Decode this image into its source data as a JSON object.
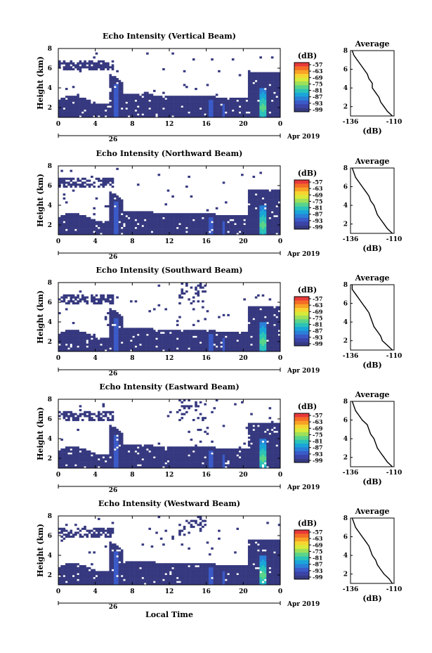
{
  "figure": {
    "xlabel": "Local Time",
    "date_left": "26",
    "date_right": "Apr 2019"
  },
  "colorbar": {
    "unit": "(dB)",
    "ticks": [
      "-57",
      "-63",
      "-69",
      "-75",
      "-81",
      "-87",
      "-93",
      "-99"
    ],
    "colors": [
      "#e8393a",
      "#f46d26",
      "#f8a226",
      "#f6d530",
      "#d8ea3a",
      "#9ee05a",
      "#5ad48a",
      "#2cc3b8",
      "#1aa5d8",
      "#2a80d8",
      "#3a5ac8",
      "#3a44a8",
      "#363a84"
    ]
  },
  "chart_data": [
    {
      "type": "heatmap",
      "title": "Echo Intensity (Vertical Beam)",
      "xlabel": "Local Time",
      "ylabel": "Height (km)",
      "xlim": [
        0,
        24
      ],
      "ylim": [
        1,
        8
      ],
      "xticks": [
        "0",
        "4",
        "8",
        "12",
        "16",
        "20",
        "0"
      ],
      "yticks": [
        "2",
        "4",
        "6",
        "8"
      ],
      "colorbar_label": "(dB)",
      "colorbar_range": [
        -99,
        -57
      ],
      "profile": {
        "title": "Average",
        "xlabel": "(dB)",
        "xlim": [
          -136,
          -110
        ],
        "xticks": [
          "-136",
          "-110"
        ],
        "yticks": [
          "2",
          "4",
          "6",
          "8"
        ],
        "ylim": [
          1,
          8
        ],
        "height": [
          1.0,
          1.5,
          2.0,
          2.5,
          3.0,
          3.5,
          4.0,
          4.5,
          5.0,
          5.5,
          6.0,
          6.5,
          7.0,
          7.5,
          8.0
        ],
        "db": [
          -111,
          -114,
          -116,
          -118,
          -119,
          -121,
          -123,
          -123,
          -125,
          -126,
          -128,
          -130,
          -132,
          -134,
          -135
        ]
      }
    },
    {
      "type": "heatmap",
      "title": "Echo Intensity (Northward Beam)",
      "xlabel": "Local Time",
      "ylabel": "Height (km)",
      "xlim": [
        0,
        24
      ],
      "ylim": [
        1,
        8
      ],
      "xticks": [
        "0",
        "4",
        "8",
        "12",
        "16",
        "20",
        "0"
      ],
      "yticks": [
        "2",
        "4",
        "6",
        "8"
      ],
      "colorbar_label": "(dB)",
      "colorbar_range": [
        -99,
        -57
      ],
      "profile": {
        "title": "Average",
        "xlabel": "(dB)",
        "xlim": [
          -136,
          -110
        ],
        "xticks": [
          "-136",
          "-110"
        ],
        "yticks": [
          "2",
          "4",
          "6",
          "8"
        ],
        "ylim": [
          1,
          8
        ],
        "height": [
          1.0,
          1.5,
          2.0,
          2.5,
          3.0,
          3.5,
          4.0,
          4.5,
          5.0,
          5.5,
          6.0,
          6.5,
          7.0,
          7.5,
          8.0
        ],
        "db": [
          -111,
          -114,
          -116,
          -118,
          -120,
          -121,
          -122,
          -124,
          -125,
          -127,
          -129,
          -131,
          -133,
          -134,
          -135
        ]
      }
    },
    {
      "type": "heatmap",
      "title": "Echo Intensity (Southward Beam)",
      "xlabel": "Local Time",
      "ylabel": "Height (km)",
      "xlim": [
        0,
        24
      ],
      "ylim": [
        1,
        8
      ],
      "xticks": [
        "0",
        "4",
        "8",
        "12",
        "16",
        "20",
        "0"
      ],
      "yticks": [
        "2",
        "4",
        "6",
        "8"
      ],
      "colorbar_label": "(dB)",
      "colorbar_range": [
        -99,
        -57
      ],
      "profile": {
        "title": "Average",
        "xlabel": "(dB)",
        "xlim": [
          -136,
          -110
        ],
        "xticks": [
          "-136",
          "-110"
        ],
        "yticks": [
          "2",
          "4",
          "6",
          "8"
        ],
        "ylim": [
          1,
          8
        ],
        "height": [
          1.0,
          1.5,
          2.0,
          2.5,
          3.0,
          3.5,
          4.0,
          4.5,
          5.0,
          5.5,
          6.0,
          6.5,
          7.0,
          7.5,
          8.0
        ],
        "db": [
          -111,
          -114,
          -117,
          -118,
          -120,
          -122,
          -123,
          -124,
          -125,
          -127,
          -129,
          -131,
          -133,
          -135,
          -135
        ]
      }
    },
    {
      "type": "heatmap",
      "title": "Echo Intensity (Eastward Beam)",
      "xlabel": "Local Time",
      "ylabel": "Height (km)",
      "xlim": [
        0,
        24
      ],
      "ylim": [
        1,
        8
      ],
      "xticks": [
        "0",
        "4",
        "8",
        "12",
        "16",
        "20",
        "0"
      ],
      "yticks": [
        "2",
        "4",
        "6",
        "8"
      ],
      "colorbar_label": "(dB)",
      "colorbar_range": [
        -99,
        -57
      ],
      "profile": {
        "title": "Average",
        "xlabel": "(dB)",
        "xlim": [
          -136,
          -110
        ],
        "xticks": [
          "-136",
          "-110"
        ],
        "yticks": [
          "2",
          "4",
          "6",
          "8"
        ],
        "ylim": [
          1,
          8
        ],
        "height": [
          1.0,
          1.5,
          2.0,
          2.5,
          3.0,
          3.5,
          4.0,
          4.5,
          5.0,
          5.5,
          6.0,
          6.5,
          7.0,
          7.5,
          8.0
        ],
        "db": [
          -111,
          -114,
          -116,
          -118,
          -120,
          -121,
          -122,
          -124,
          -125,
          -126,
          -129,
          -131,
          -133,
          -134,
          -135
        ]
      }
    },
    {
      "type": "heatmap",
      "title": "Echo Intensity (Westward Beam)",
      "xlabel": "Local Time",
      "ylabel": "Height (km)",
      "xlim": [
        0,
        24
      ],
      "ylim": [
        1,
        8
      ],
      "xticks": [
        "0",
        "4",
        "8",
        "12",
        "16",
        "20",
        "0"
      ],
      "yticks": [
        "2",
        "4",
        "6",
        "8"
      ],
      "colorbar_label": "(dB)",
      "colorbar_range": [
        -99,
        -57
      ],
      "profile": {
        "title": "Average",
        "xlabel": "(dB)",
        "xlim": [
          -136,
          -110
        ],
        "xticks": [
          "-136",
          "-110"
        ],
        "yticks": [
          "2",
          "4",
          "6",
          "8"
        ],
        "ylim": [
          1,
          8
        ],
        "height": [
          1.0,
          1.5,
          2.0,
          2.5,
          3.0,
          3.5,
          4.0,
          4.5,
          5.0,
          5.5,
          6.0,
          6.5,
          7.0,
          7.5,
          8.0
        ],
        "db": [
          -111,
          -113,
          -116,
          -118,
          -120,
          -121,
          -123,
          -124,
          -125,
          -127,
          -129,
          -131,
          -133,
          -134,
          -135
        ]
      }
    }
  ]
}
